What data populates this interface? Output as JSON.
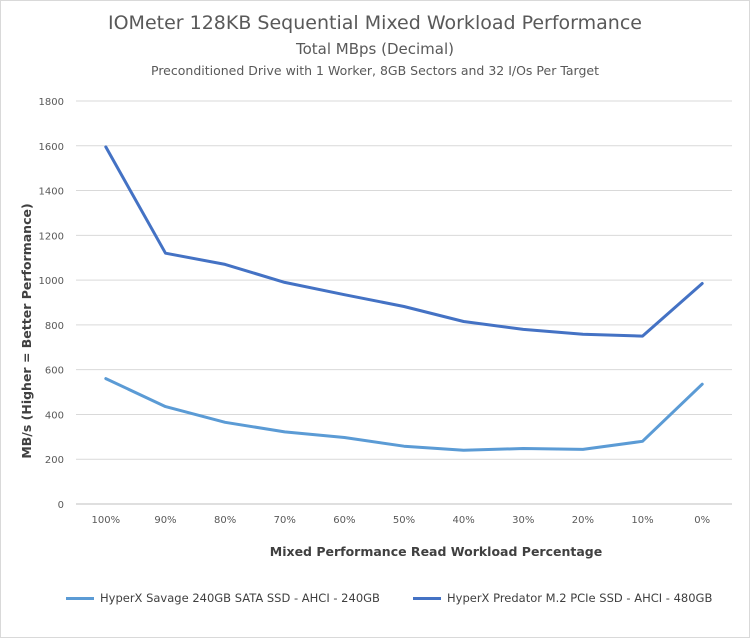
{
  "chart_data": {
    "type": "line",
    "title": "IOMeter 128KB Sequential Mixed Workload Performance",
    "subtitle": "Total MBps (Decimal)",
    "subtitle2": "Preconditioned  Drive with 1 Worker, 8GB Sectors and 32 I/Os Per Target",
    "xlabel": "Mixed Performance Read Workload Percentage",
    "ylabel": "MB/s (Higher = Better Performance)",
    "ylim": [
      0,
      1800
    ],
    "yticks": [
      "0",
      "200",
      "400",
      "600",
      "800",
      "1000",
      "1200",
      "1400",
      "1600",
      "1800"
    ],
    "categories": [
      "100%",
      "90%",
      "80%",
      "70%",
      "60%",
      "50%",
      "40%",
      "30%",
      "20%",
      "10%",
      "0%"
    ],
    "grid": true,
    "legend_position": "bottom",
    "series": [
      {
        "name": "HyperX Savage 240GB SATA SSD - AHCI - 240GB",
        "color": "#5b9bd5",
        "values": [
          560,
          435,
          365,
          322,
          297,
          258,
          240,
          248,
          244,
          280,
          535
        ]
      },
      {
        "name": "HyperX Predator M.2 PCIe SSD - AHCI - 480GB",
        "color": "#4472c4",
        "values": [
          1595,
          1120,
          1070,
          990,
          935,
          882,
          815,
          780,
          758,
          750,
          985
        ]
      }
    ]
  }
}
